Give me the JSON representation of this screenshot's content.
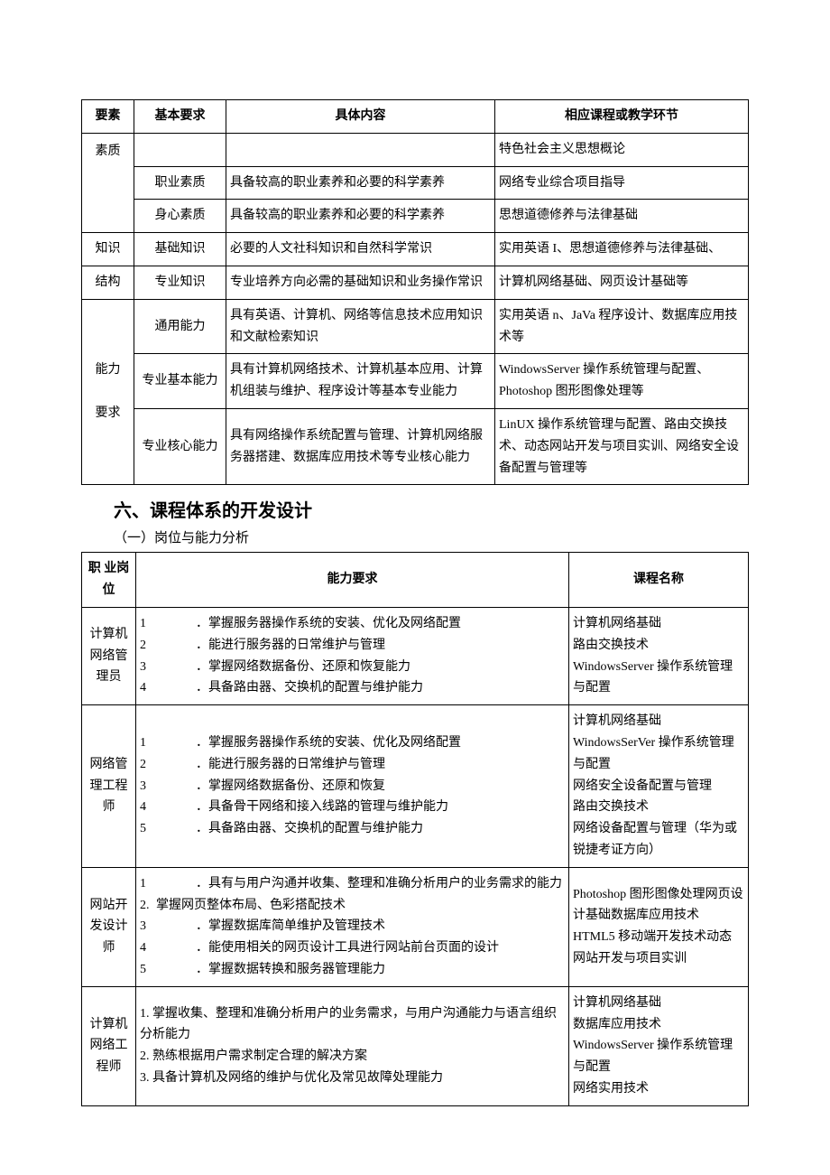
{
  "table1": {
    "headers": [
      "要素",
      "基本要求",
      "具体内容",
      "相应课程或教学环节"
    ],
    "rows": [
      {
        "c1": "素质",
        "c2": "",
        "c3": "",
        "c4": "特色社会主义思想概论"
      },
      {
        "c1": "",
        "c2": "职业素质",
        "c3": "具备较高的职业素养和必要的科学素养",
        "c4": "网络专业综合项目指导"
      },
      {
        "c1": "",
        "c2": "身心素质",
        "c3": "具备较高的职业素养和必要的科学素养",
        "c4": "思想道德修养与法律基础"
      },
      {
        "c1": "知识",
        "c2": "基础知识",
        "c3": "必要的人文社科知识和自然科学常识",
        "c4": "实用英语 I、思想道德修养与法律基础、"
      },
      {
        "c1": "结构",
        "c2": "专业知识",
        "c3": "专业培养方向必需的基础知识和业务操作常识",
        "c4": "计算机网络基础、网页设计基础等"
      },
      {
        "c1_span": "能力\n\n要求",
        "c2": "通用能力",
        "c3": "具有英语、计算机、网络等信息技术应用知识和文献检索知识",
        "c4": "实用英语 n、JaVa 程序设计、数据库应用技术等"
      },
      {
        "c2": "专业基本能力",
        "c3": "具有计算机网络技术、计算机基本应用、计算机组装与维护、程序设计等基本专业能力",
        "c4": "WindowsServer 操作系统管理与配置、Photoshop 图形图像处理等"
      },
      {
        "c2": "专业核心能力",
        "c3": "具有网络操作系统配置与管理、计算机网络服务器搭建、数据库应用技术等专业核心能力",
        "c4": "LinUX 操作系统管理与配置、路由交换技术、动态网站开发与项目实训、网络安全设备配置与管理等"
      }
    ]
  },
  "section_title": "六、课程体系的开发设计",
  "subsection_title": "（一）岗位与能力分析",
  "table2": {
    "headers": [
      "职 业岗位",
      "能力要求",
      "课程名称"
    ],
    "rows": [
      {
        "c1": "计算机网络管理员",
        "reqs": [
          {
            "n": "1",
            "t": "．掌握服务器操作系统的安装、优化及网络配置"
          },
          {
            "n": "2",
            "t": "．能进行服务器的日常维护与管理"
          },
          {
            "n": "3",
            "t": "．掌握网络数据备份、还原和恢复能力"
          },
          {
            "n": "4",
            "t": "．具备路由器、交换机的配置与维护能力"
          }
        ],
        "c3": "计算机网络基础\n路由交换技术\nWindowsServer 操作系统管理与配置"
      },
      {
        "c1": "网络管理工程师",
        "reqs": [
          {
            "n": "1",
            "t": "．掌握服务器操作系统的安装、优化及网络配置"
          },
          {
            "n": "2",
            "t": "．能进行服务器的日常维护与管理"
          },
          {
            "n": "3",
            "t": "．掌握网络数据备份、还原和恢复"
          },
          {
            "n": "4",
            "t": "．具备骨干网络和接入线路的管理与维护能力"
          },
          {
            "n": "5",
            "t": "．具备路由器、交换机的配置与维护能力"
          }
        ],
        "c3": "计算机网络基础\nWindowsSerVer 操作系统管理与配置\n网络安全设备配置与管理\n路由交换技术\n网络设备配置与管理（华为或锐捷考证方向）"
      },
      {
        "c1": "网站开发设计师",
        "reqs": [
          {
            "n": "1",
            "t": "．具有与用户沟通并收集、整理和准确分析用户的业务需求的能力"
          },
          {
            "n": "2.",
            "t": "掌握网页整体布局、色彩搭配技术",
            "tight": true
          },
          {
            "n": "3",
            "t": "．掌握数据库简单维护及管理技术"
          },
          {
            "n": "4",
            "t": "．能使用相关的网页设计工具进行网站前台页面的设计"
          },
          {
            "n": "5",
            "t": "．掌握数据转换和服务器管理能力"
          }
        ],
        "c3": "Photoshop 图形图像处理网页设计基础数据库应用技术\nHTML5 移动端开发技术动态网站开发与项目实训"
      },
      {
        "c1": "计算机网络工程师",
        "plain": [
          "1. 掌握收集、整理和准确分析用户的业务需求，与用户沟通能力与语言组织分析能力",
          "2. 熟练根据用户需求制定合理的解决方案",
          "3. 具备计算机及网络的维护与优化及常见故障处理能力"
        ],
        "c3": "计算机网络基础\n数据库应用技术\nWindowsServer 操作系统管理与配置\n网络实用技术"
      }
    ]
  }
}
